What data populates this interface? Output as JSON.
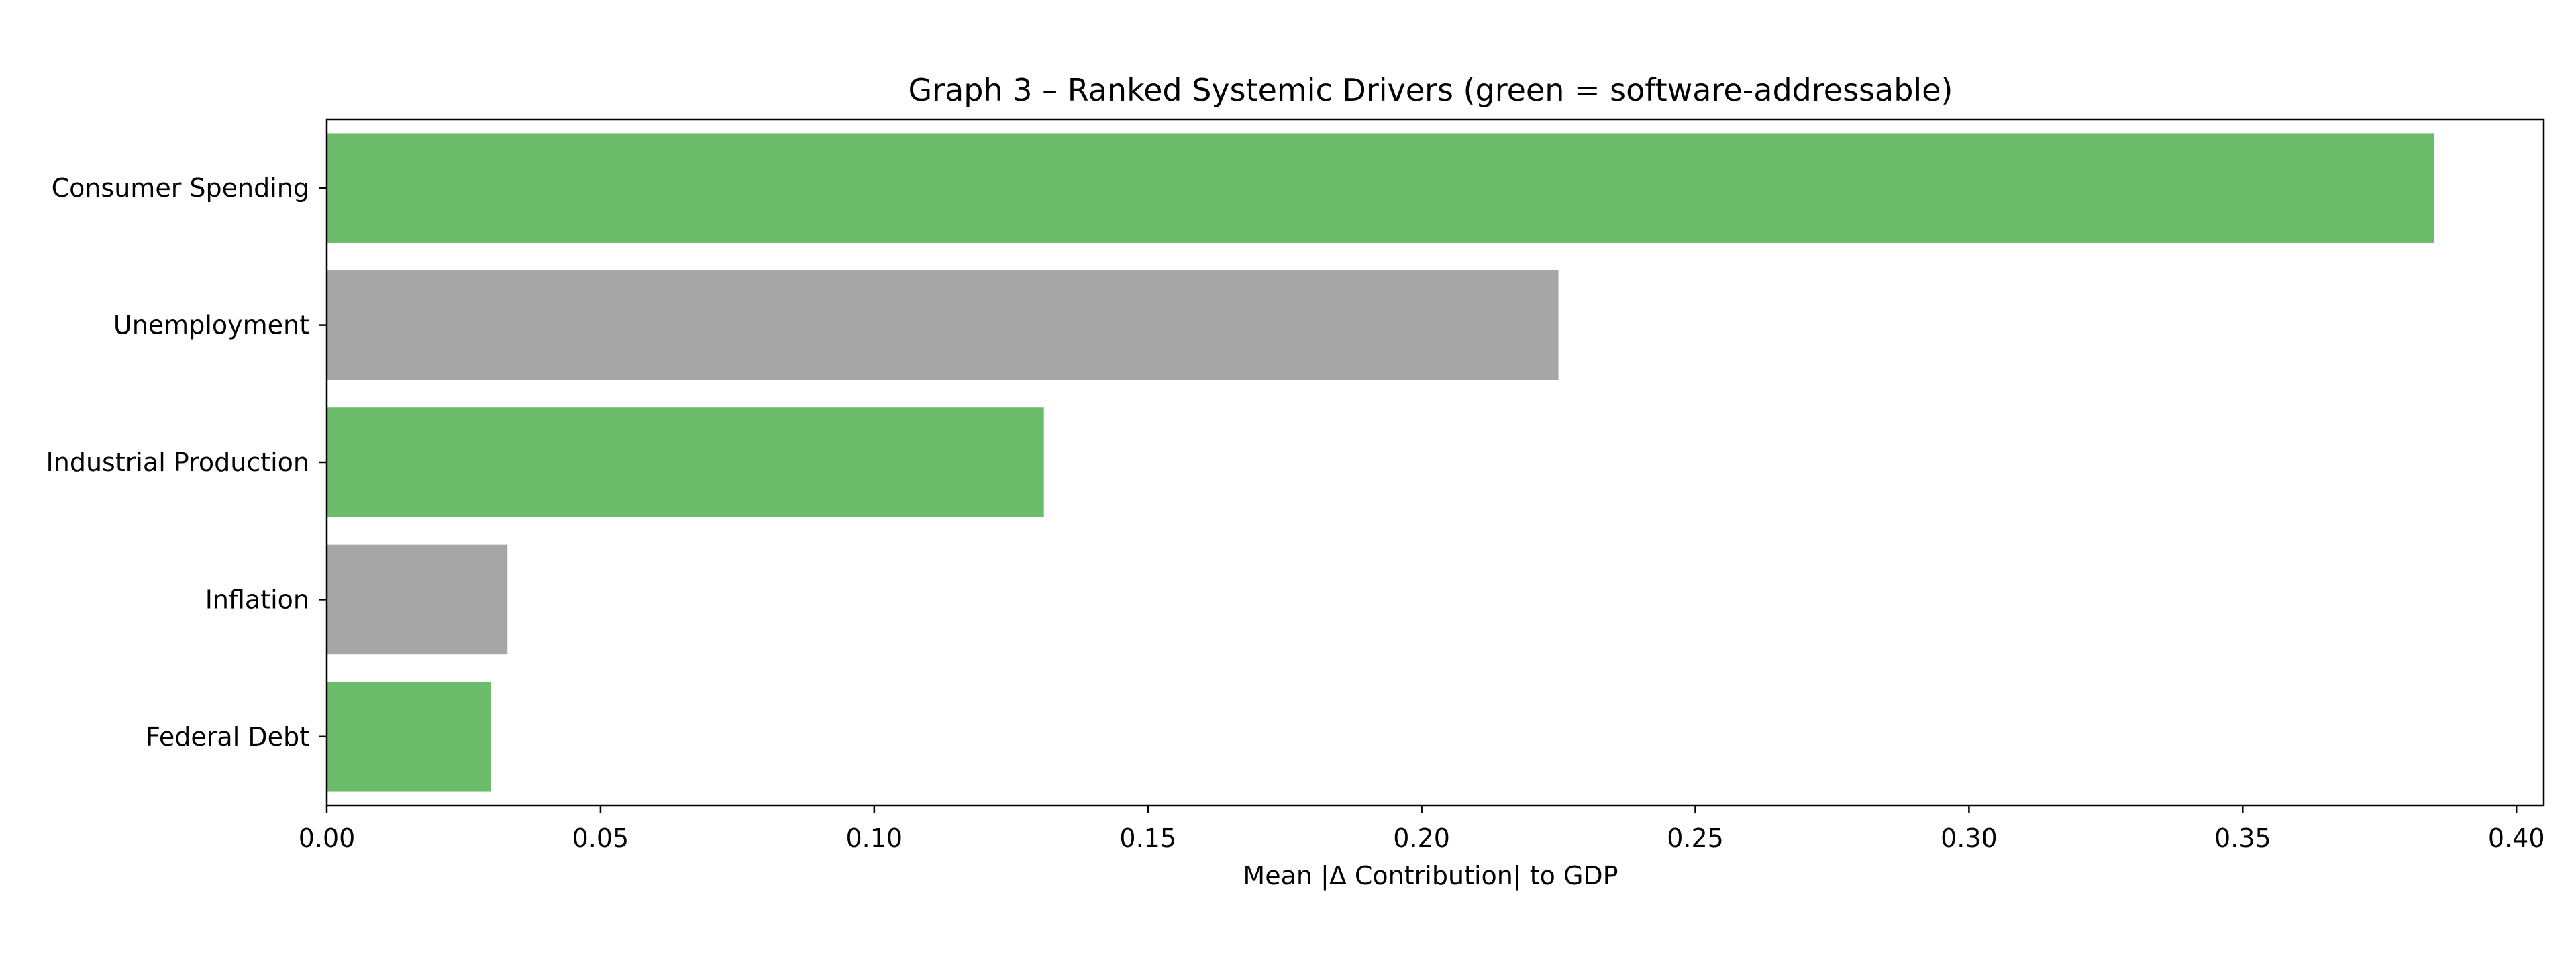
{
  "chart_data": {
    "type": "bar",
    "orientation": "horizontal",
    "title": "Graph 3 – Ranked Systemic Drivers (green = software-addressable)",
    "xlabel": "Mean |Δ Contribution| to GDP",
    "ylabel": "",
    "xlim": [
      0.0,
      0.405
    ],
    "x_ticks": [
      "0.00",
      "0.05",
      "0.10",
      "0.15",
      "0.20",
      "0.25",
      "0.30",
      "0.35",
      "0.40"
    ],
    "x_tick_values": [
      0.0,
      0.05,
      0.1,
      0.15,
      0.2,
      0.25,
      0.3,
      0.35,
      0.4
    ],
    "categories": [
      "Consumer Spending",
      "Unemployment",
      "Industrial Production",
      "Inflation",
      "Federal Debt"
    ],
    "values": [
      0.385,
      0.225,
      0.131,
      0.033,
      0.03
    ],
    "bar_colors": [
      "#6bbd6b",
      "#a6a6a6",
      "#6bbd6b",
      "#a6a6a6",
      "#6bbd6b"
    ],
    "grid": false,
    "legend": "none"
  }
}
